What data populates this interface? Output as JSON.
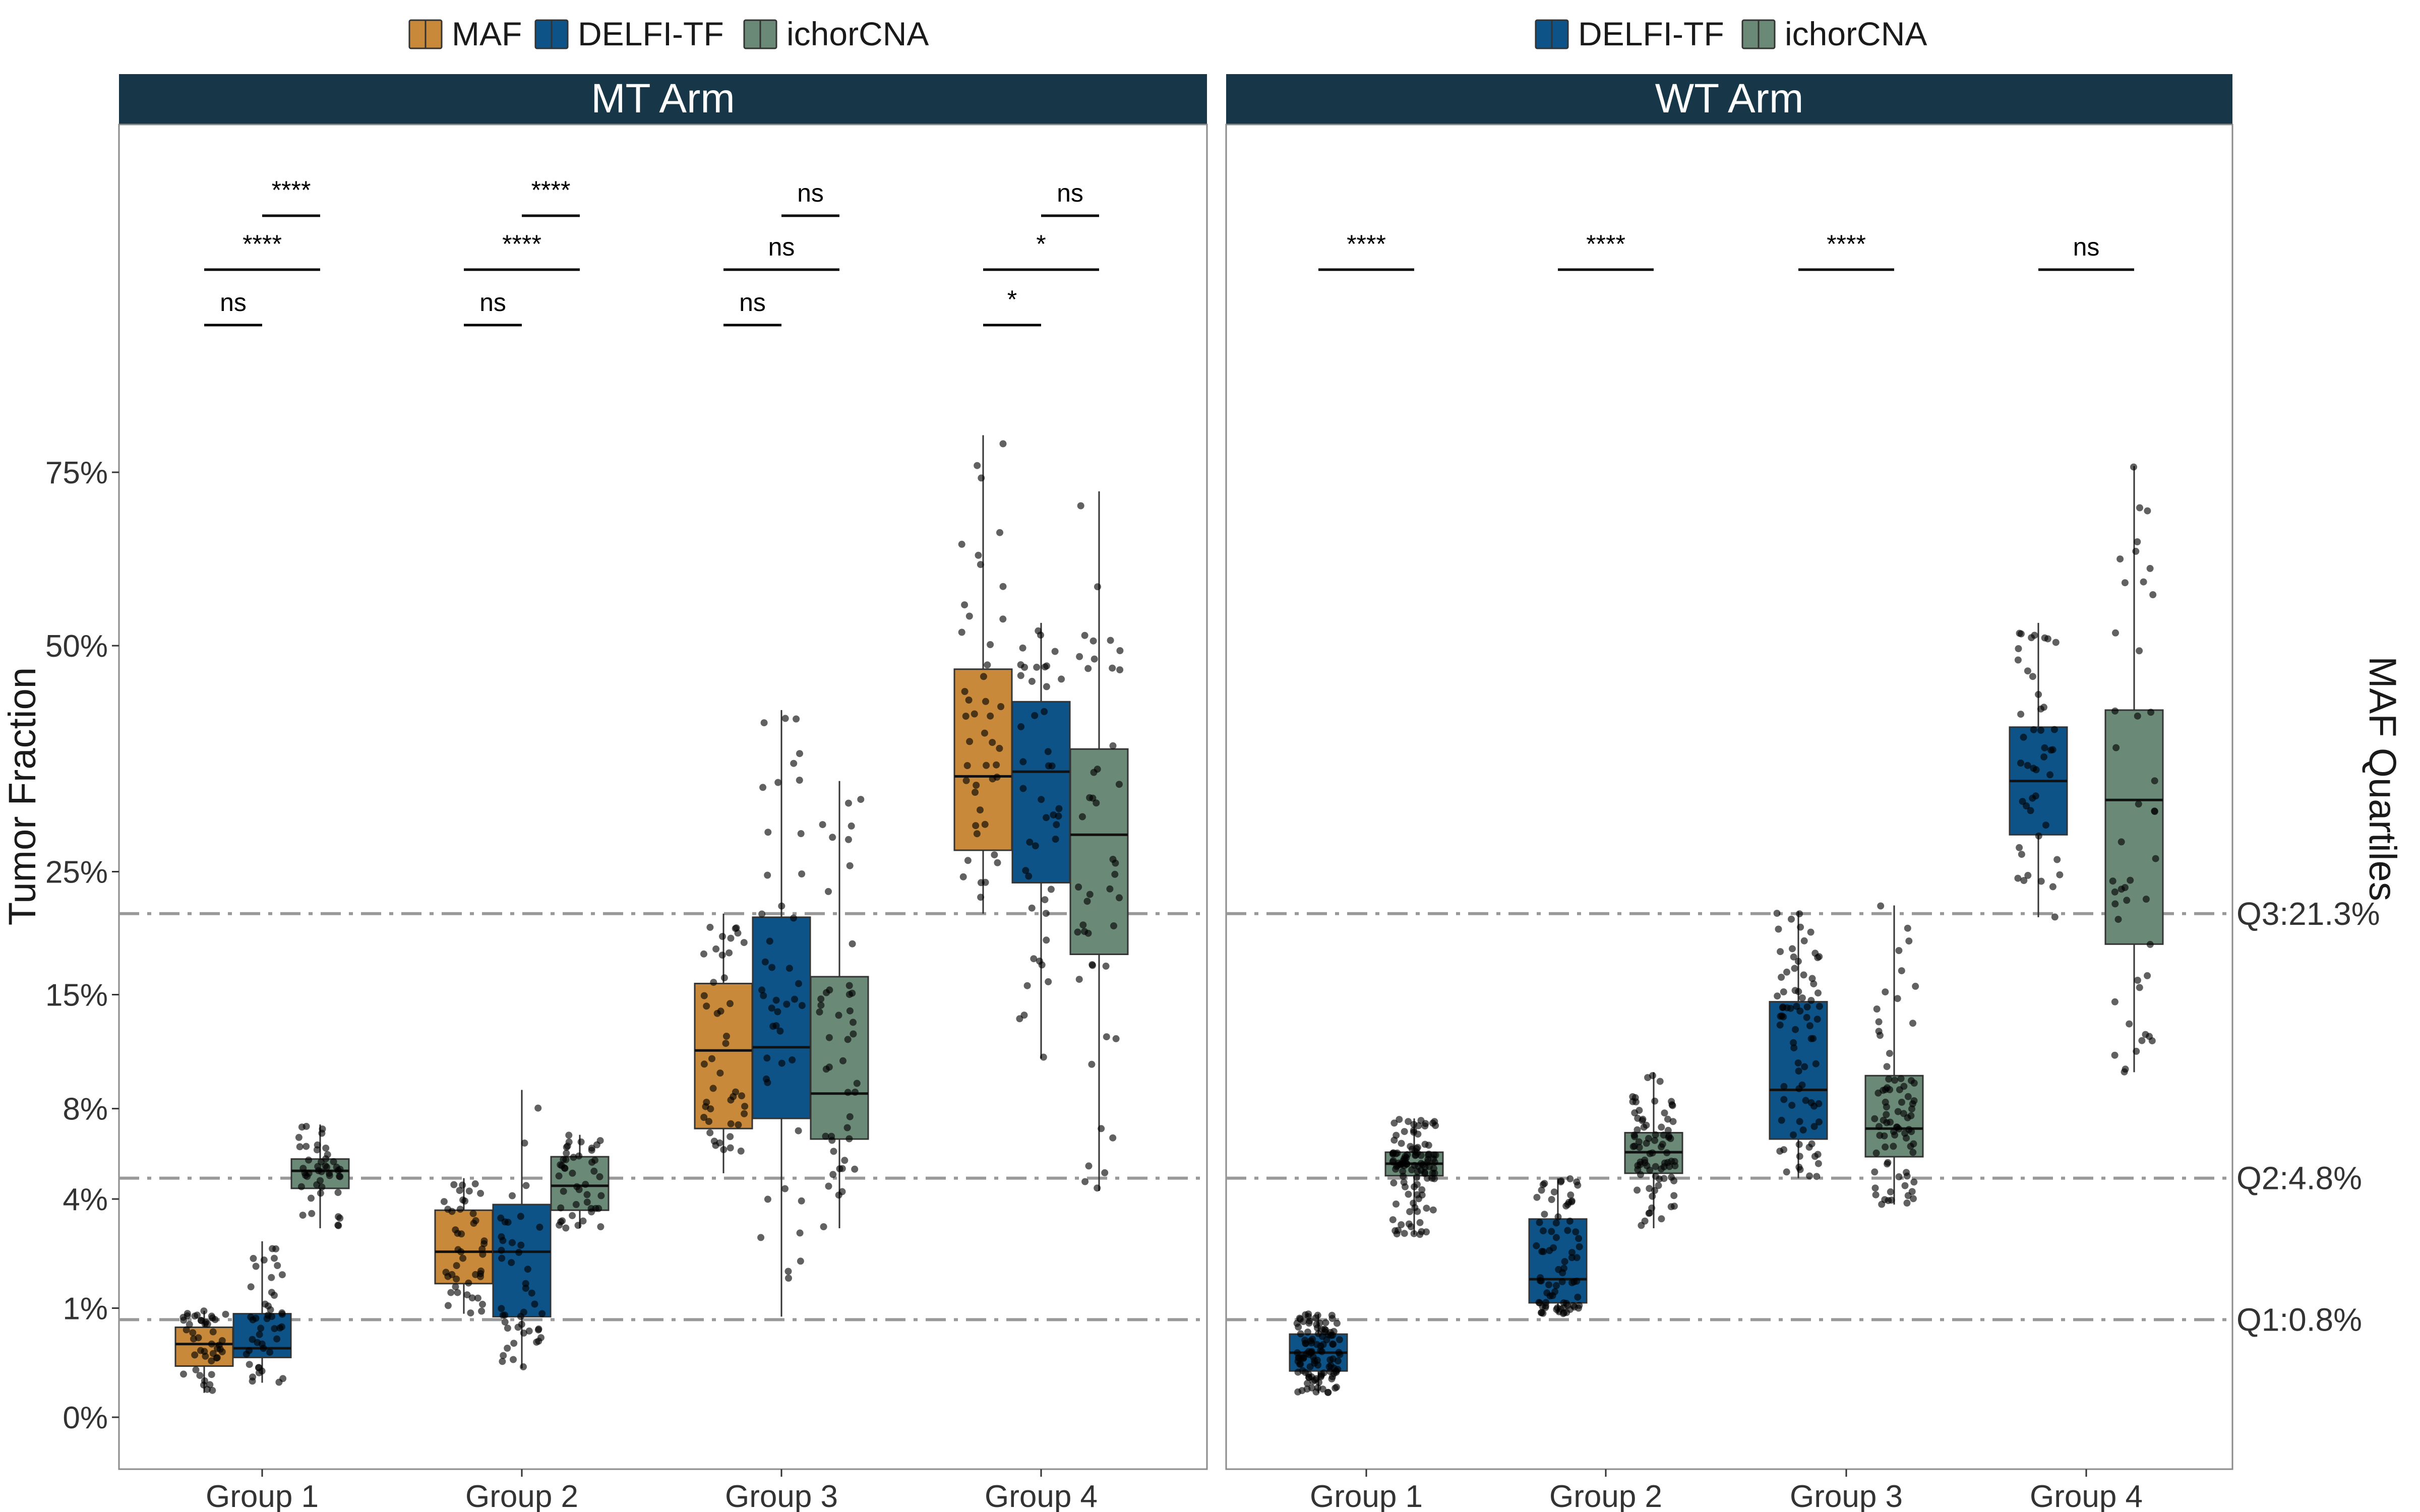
{
  "chart_data": {
    "type": "boxplot",
    "ylabel": "Tumor Fraction",
    "right_axis_title": "MAF Quartiles",
    "y_scale": "square-root",
    "y_ticks": [
      {
        "value": 0,
        "label": "0%"
      },
      {
        "value": 1,
        "label": "1%"
      },
      {
        "value": 4,
        "label": "4%"
      },
      {
        "value": 8,
        "label": "8%"
      },
      {
        "value": 15,
        "label": "15%"
      },
      {
        "value": 25,
        "label": "25%"
      },
      {
        "value": 50,
        "label": "50%"
      },
      {
        "value": 75,
        "label": "75%"
      }
    ],
    "reference_lines": [
      {
        "label": "Q3:21.3%",
        "value": 21.3
      },
      {
        "label": "Q2:4.8%",
        "value": 4.8
      },
      {
        "label": "Q1:0.8%",
        "value": 0.8
      }
    ],
    "colors": {
      "MAF": "#C8893A",
      "DELFI-TF": "#0E5388",
      "ichorCNA": "#6A8A77",
      "strip": "#173749",
      "reference": "#999999"
    },
    "categories": [
      "Group 1",
      "Group 2",
      "Group 3",
      "Group 4"
    ],
    "panels": [
      {
        "title": "MT Arm",
        "legend": [
          "MAF",
          "DELFI-TF",
          "ichorCNA"
        ],
        "series": [
          {
            "name": "MAF",
            "boxes": [
              {
                "min": 0.05,
                "q1": 0.22,
                "median": 0.45,
                "q3": 0.68,
                "max": 0.95
              },
              {
                "min": 0.9,
                "q1": 1.5,
                "median": 2.3,
                "q3": 3.6,
                "max": 4.8
              },
              {
                "min": 5.0,
                "q1": 7.0,
                "median": 11.3,
                "q3": 15.8,
                "max": 21.3
              },
              {
                "min": 21.3,
                "q1": 27.0,
                "median": 34.5,
                "q3": 47.0,
                "max": 81.0
              }
            ]
          },
          {
            "name": "DELFI-TF",
            "boxes": [
              {
                "min": 0.1,
                "q1": 0.3,
                "median": 0.4,
                "q3": 0.9,
                "max": 2.6
              },
              {
                "min": 0.2,
                "q1": 0.85,
                "median": 2.3,
                "q3": 3.8,
                "max": 9.0
              },
              {
                "min": 0.85,
                "q1": 7.5,
                "median": 11.5,
                "q3": 21.0,
                "max": 42.0
              },
              {
                "min": 10.8,
                "q1": 24.0,
                "median": 35.0,
                "q3": 43.0,
                "max": 53.0
              }
            ]
          },
          {
            "name": "ichorCNA",
            "boxes": [
              {
                "min": 3.0,
                "q1": 4.4,
                "median": 5.1,
                "q3": 5.6,
                "max": 7.2
              },
              {
                "min": 3.0,
                "q1": 3.6,
                "median": 4.5,
                "q3": 5.7,
                "max": 6.7
              },
              {
                "min": 3.0,
                "q1": 6.5,
                "median": 8.8,
                "q3": 16.3,
                "max": 34.0
              },
              {
                "min": 4.3,
                "q1": 18.0,
                "median": 28.5,
                "q3": 37.5,
                "max": 72.0
              }
            ]
          }
        ],
        "significance": [
          {
            "group": "Group 1",
            "comparisons": [
              {
                "pair": "MAF vs DELFI-TF",
                "label": "ns"
              },
              {
                "pair": "MAF vs ichorCNA",
                "label": "****"
              },
              {
                "pair": "DELFI-TF vs ichorCNA",
                "label": "****"
              }
            ]
          },
          {
            "group": "Group 2",
            "comparisons": [
              {
                "pair": "MAF vs DELFI-TF",
                "label": "ns"
              },
              {
                "pair": "MAF vs ichorCNA",
                "label": "****"
              },
              {
                "pair": "DELFI-TF vs ichorCNA",
                "label": "****"
              }
            ]
          },
          {
            "group": "Group 3",
            "comparisons": [
              {
                "pair": "MAF vs DELFI-TF",
                "label": "ns"
              },
              {
                "pair": "MAF vs ichorCNA",
                "label": "ns"
              },
              {
                "pair": "DELFI-TF vs ichorCNA",
                "label": "ns"
              }
            ]
          },
          {
            "group": "Group 4",
            "comparisons": [
              {
                "pair": "MAF vs DELFI-TF",
                "label": "*"
              },
              {
                "pair": "MAF vs ichorCNA",
                "label": "*"
              },
              {
                "pair": "DELFI-TF vs ichorCNA",
                "label": "ns"
              }
            ]
          }
        ]
      },
      {
        "title": "WT Arm",
        "legend": [
          "DELFI-TF",
          "ichorCNA"
        ],
        "series": [
          {
            "name": "DELFI-TF",
            "boxes": [
              {
                "min": 0.05,
                "q1": 0.18,
                "median": 0.35,
                "q3": 0.58,
                "max": 0.9
              },
              {
                "min": 0.9,
                "q1": 1.1,
                "median": 1.6,
                "q3": 3.3,
                "max": 4.8
              },
              {
                "min": 4.8,
                "q1": 6.5,
                "median": 9.0,
                "q3": 14.5,
                "max": 21.5
              },
              {
                "min": 21.0,
                "q1": 28.5,
                "median": 34.0,
                "q3": 40.0,
                "max": 53.0
              }
            ]
          },
          {
            "name": "ichorCNA",
            "boxes": [
              {
                "min": 2.8,
                "q1": 4.9,
                "median": 5.4,
                "q3": 5.9,
                "max": 7.5
              },
              {
                "min": 3.0,
                "q1": 5.0,
                "median": 5.9,
                "q3": 6.8,
                "max": 10.0
              },
              {
                "min": 3.8,
                "q1": 5.7,
                "median": 7.0,
                "q3": 9.8,
                "max": 22.0
              },
              {
                "min": 10.0,
                "q1": 18.8,
                "median": 32.0,
                "q3": 42.0,
                "max": 76.0
              }
            ]
          }
        ],
        "significance": [
          {
            "group": "Group 1",
            "comparisons": [
              {
                "pair": "DELFI-TF vs ichorCNA",
                "label": "****"
              }
            ]
          },
          {
            "group": "Group 2",
            "comparisons": [
              {
                "pair": "DELFI-TF vs ichorCNA",
                "label": "****"
              }
            ]
          },
          {
            "group": "Group 3",
            "comparisons": [
              {
                "pair": "DELFI-TF vs ichorCNA",
                "label": "****"
              }
            ]
          },
          {
            "group": "Group 4",
            "comparisons": [
              {
                "pair": "DELFI-TF vs ichorCNA",
                "label": "ns"
              }
            ]
          }
        ]
      }
    ]
  }
}
